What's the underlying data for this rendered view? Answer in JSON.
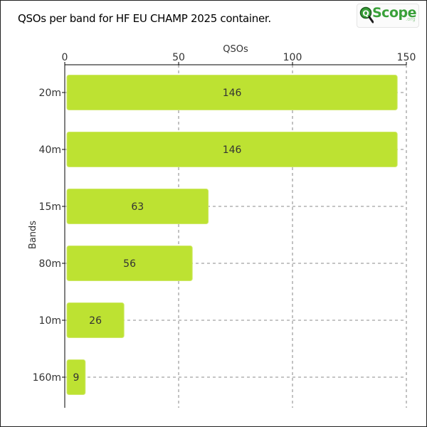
{
  "title": "QSOs per band for HF EU CHAMP 2025 container.",
  "logo": {
    "text": "Scope",
    "tld": ".org",
    "icon": "magnifier-q-icon"
  },
  "colors": {
    "bar": "#bde232",
    "bar_stroke": "#cfe86a",
    "grid": "#666666",
    "axis": "#000000",
    "text": "#333333"
  },
  "chart_data": {
    "type": "bar",
    "orientation": "horizontal",
    "categories": [
      "20m",
      "40m",
      "15m",
      "80m",
      "10m",
      "160m"
    ],
    "values": [
      146,
      146,
      63,
      56,
      26,
      9
    ],
    "xlabel": "QSOs",
    "ylabel": "Bands",
    "xlim": [
      0,
      150
    ],
    "xticks": [
      0,
      50,
      100,
      150
    ],
    "x_axis_position": "top",
    "grid": "dashed",
    "data_labels": true
  }
}
